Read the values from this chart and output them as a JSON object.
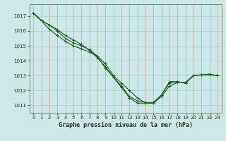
{
  "title": "Graphe pression niveau de la mer (hPa)",
  "bg_color": "#cce8e8",
  "grid_color": "#aacfcf",
  "line_color": "#1a5c1a",
  "xlim": [
    -0.5,
    23.5
  ],
  "ylim": [
    1010.5,
    1017.8
  ],
  "yticks": [
    1011,
    1012,
    1013,
    1014,
    1015,
    1016,
    1017
  ],
  "xticks": [
    0,
    1,
    2,
    3,
    4,
    5,
    6,
    7,
    8,
    9,
    10,
    11,
    12,
    13,
    14,
    15,
    16,
    17,
    18,
    19,
    20,
    21,
    22,
    23
  ],
  "series1_x": [
    0,
    1,
    2,
    3,
    4,
    5,
    6,
    7,
    8,
    9,
    10,
    11,
    12,
    13,
    14,
    15,
    16,
    17,
    18,
    19,
    20,
    21,
    22,
    23
  ],
  "series1_y": [
    1017.2,
    1016.7,
    1016.4,
    1016.1,
    1015.7,
    1015.4,
    1015.1,
    1014.7,
    1014.2,
    1013.6,
    1012.9,
    1012.2,
    1011.5,
    1011.15,
    1011.15,
    1011.15,
    1011.7,
    1012.5,
    1012.6,
    1012.5,
    1013.0,
    1013.05,
    1013.05,
    1013.0
  ],
  "series2_x": [
    0,
    1,
    2,
    3,
    4,
    5,
    6,
    7,
    8,
    9,
    10,
    11,
    12,
    13,
    14,
    15,
    16,
    17,
    18,
    19,
    20,
    21,
    22,
    23
  ],
  "series2_y": [
    1017.2,
    1016.7,
    1016.4,
    1016.0,
    1015.5,
    1015.2,
    1015.0,
    1014.75,
    1014.3,
    1013.5,
    1012.9,
    1012.3,
    1011.6,
    1011.3,
    1011.2,
    1011.2,
    1011.7,
    1012.6,
    1012.6,
    1012.5,
    1013.0,
    1013.05,
    1013.1,
    1013.0
  ],
  "series3_x": [
    0,
    1,
    2,
    3,
    4,
    5,
    6,
    7,
    8,
    9,
    10,
    11,
    12,
    13,
    14,
    15,
    16,
    17,
    18,
    19,
    20,
    21,
    22,
    23
  ],
  "series3_y": [
    1017.2,
    1016.7,
    1016.1,
    1015.7,
    1015.3,
    1015.0,
    1014.8,
    1014.6,
    1014.3,
    1013.8,
    1013.0,
    1012.5,
    1012.0,
    1011.5,
    1011.15,
    1011.15,
    1011.6,
    1012.3,
    1012.55,
    1012.55,
    1013.0,
    1013.05,
    1013.1,
    1013.0
  ]
}
